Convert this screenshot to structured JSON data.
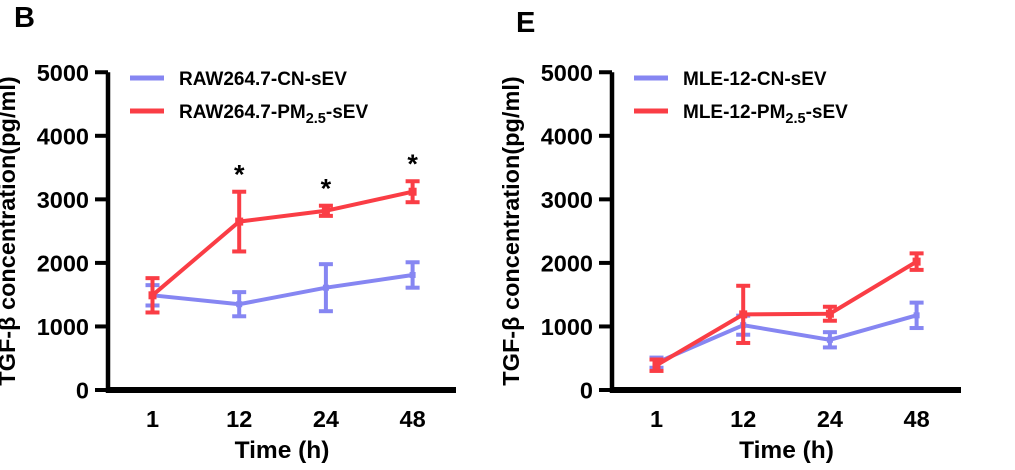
{
  "chart_data": {
    "type": "line",
    "grid": false,
    "legend_position": "top-left-inside",
    "colors": {
      "cn_blue": "#8686f2",
      "pm_red": "#fa3d45",
      "axis_black": "#000000"
    },
    "panels": [
      {
        "label": "B",
        "xlabel": "Time (h)",
        "ylabel": "TGF-β concentration(pg/ml)",
        "categories": [
          "1",
          "12",
          "24",
          "48"
        ],
        "ylim": [
          0,
          5000
        ],
        "yticks": [
          0,
          1000,
          2000,
          3000,
          4000,
          5000
        ],
        "series": [
          {
            "name": "RAW264.7-CN-sEV",
            "label_parts": {
              "pre": "RAW264.7-CN-sEV",
              "sub": "",
              "post": ""
            },
            "color": "#8686f2",
            "values": [
              1490,
              1350,
              1610,
              1810
            ],
            "errors": [
              160,
              190,
              370,
              200
            ],
            "significance": [
              "",
              "",
              "",
              ""
            ]
          },
          {
            "name": "RAW264.7-PM2.5-sEV",
            "label_parts": {
              "pre": "RAW264.7-PM",
              "sub": "2.5",
              "post": "-sEV"
            },
            "color": "#fa3d45",
            "values": [
              1490,
              2650,
              2820,
              3120
            ],
            "errors": [
              270,
              470,
              80,
              165
            ],
            "significance": [
              "",
              "*",
              "*",
              "*"
            ]
          }
        ]
      },
      {
        "label": "E",
        "xlabel": "Time (h)",
        "ylabel": "TGF-β concentration(pg/ml)",
        "categories": [
          "1",
          "12",
          "24",
          "48"
        ],
        "ylim": [
          0,
          5000
        ],
        "yticks": [
          0,
          1000,
          2000,
          3000,
          4000,
          5000
        ],
        "series": [
          {
            "name": "MLE-12-CN-sEV",
            "label_parts": {
              "pre": "MLE-12-CN-sEV",
              "sub": "",
              "post": ""
            },
            "color": "#8686f2",
            "values": [
              430,
              1020,
              790,
              1175
            ],
            "errors": [
              80,
              150,
              120,
              200
            ],
            "significance": [
              "",
              "",
              "",
              ""
            ]
          },
          {
            "name": "MLE-12-PM2.5-sEV",
            "label_parts": {
              "pre": "MLE-12-PM",
              "sub": "2.5",
              "post": "-sEV"
            },
            "color": "#fa3d45",
            "values": [
              390,
              1190,
              1200,
              2020
            ],
            "errors": [
              90,
              450,
              110,
              130
            ],
            "significance": [
              "",
              "",
              "",
              ""
            ]
          }
        ]
      }
    ]
  }
}
